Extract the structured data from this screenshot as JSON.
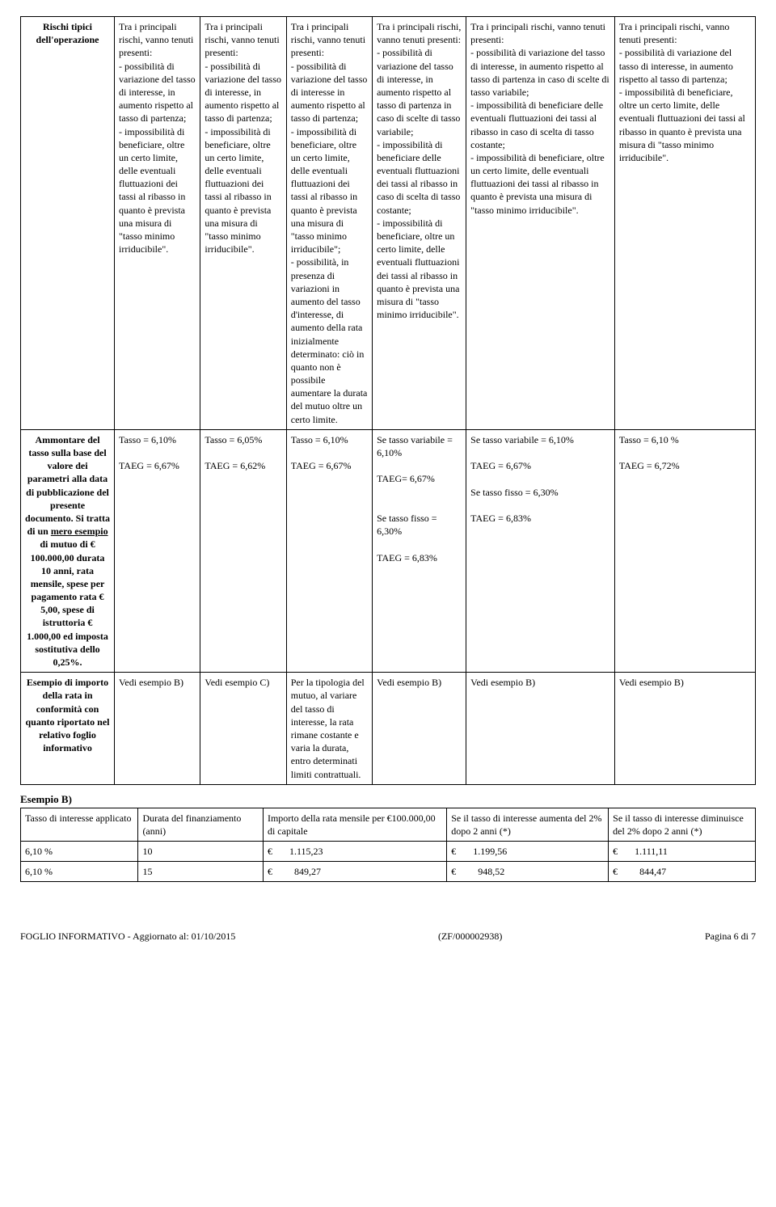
{
  "mainTable": {
    "col_widths": [
      "12%",
      "11%",
      "11%",
      "11%",
      "12%",
      "19%",
      "18%"
    ],
    "rows": [
      {
        "header": "Rischi tipici dell'operazione",
        "cells": [
          "Tra i principali rischi, vanno tenuti presenti:\n- possibilità di variazione del tasso di interesse, in aumento rispetto al tasso di partenza;\n- impossibilità di beneficiare, oltre un certo limite, delle eventuali fluttuazioni dei tassi al ribasso in quanto è prevista una misura di \"tasso minimo irriducibile\".",
          "Tra i principali rischi, vanno tenuti presenti:\n- possibilità di variazione del tasso di interesse, in aumento rispetto al tasso di partenza;\n- impossibilità di beneficiare, oltre un certo limite, delle eventuali fluttuazioni dei tassi al ribasso in quanto è prevista  una misura di \"tasso minimo irriducibile\".",
          "Tra i principali rischi, vanno tenuti presenti:\n- possibilità di variazione del tasso di interesse  in aumento rispetto al tasso di partenza;\n- impossibilità di beneficiare, oltre un certo limite, delle eventuali fluttuazioni dei tassi al ribasso in quanto è prevista una misura di \"tasso minimo irriducibile\";\n- possibilità, in presenza di variazioni in aumento del tasso d'interesse, di aumento della rata inizialmente determinato: ciò in quanto non è possibile aumentare la durata del mutuo oltre un certo limite.",
          "Tra i principali rischi, vanno tenuti presenti:\n- possibilità di variazione del tasso di interesse, in aumento rispetto al tasso di partenza in caso di scelte di tasso variabile;\n- impossibilità di beneficiare delle eventuali fluttuazioni dei tassi al ribasso in caso di scelta di tasso costante;\n- impossibilità di beneficiare, oltre un certo limite, delle eventuali fluttuazioni dei tassi al ribasso in quanto è prevista una misura di \"tasso minimo irriducibile\".",
          "Tra i principali rischi, vanno tenuti presenti:\n- possibilità di variazione del tasso di interesse, in aumento rispetto al tasso di partenza in caso di scelte di tasso variabile;\n- impossibilità di beneficiare delle eventuali fluttuazioni dei tassi al ribasso in caso di scelta di tasso costante;\n- impossibilità di beneficiare, oltre un certo limite, delle eventuali fluttuazioni dei tassi al ribasso in quanto è prevista una misura di \"tasso minimo irriducibile\".",
          "Tra i principali rischi, vanno tenuti presenti:\n- possibilità di variazione del tasso di interesse, in aumento rispetto al tasso di partenza;\n- impossibilità di beneficiare, oltre un certo limite, delle eventuali fluttuazioni dei tassi al ribasso in quanto è prevista  una misura di \"tasso minimo irriducibile\"."
        ]
      },
      {
        "header_html": "Ammontare del tasso sulla base del valore dei parametri alla data di pubblicazione del presente documento. Si tratta di un <span class=\"underline\">mero esempio</span> di mutuo di € 100.000,00 durata 10 anni, rata mensile, spese per pagamento rata € 5,00, spese di istruttoria € 1.000,00 ed imposta sostitutiva dello 0,25%.",
        "cells": [
          "Tasso =  6,10%\n\nTAEG = 6,67%",
          "Tasso = 6,05%\n\nTAEG = 6,62%",
          "Tasso = 6,10%\n\nTAEG = 6,67%",
          "Se tasso variabile = 6,10%\n\nTAEG= 6,67%\n\n\nSe tasso  fisso = 6,30%\n\nTAEG = 6,83%",
          "Se tasso variabile = 6,10%\n\nTAEG = 6,67%\n\nSe tasso  fisso = 6,30%\n\nTAEG = 6,83%",
          "Tasso =  6,10 %\n\nTAEG = 6,72%"
        ]
      },
      {
        "header": "Esempio di importo della rata in conformità con quanto riportato nel relativo foglio informativo",
        "cells": [
          "Vedi esempio B)",
          "Vedi esempio C)",
          "Per la tipologia del mutuo, al variare del tasso di interesse, la rata rimane costante e varia la durata, entro determinati limiti contrattuali.",
          "Vedi esempio B)",
          "Vedi esempio B)",
          "Vedi esempio B)"
        ]
      }
    ]
  },
  "exampleB": {
    "label": "Esempio B)",
    "headers": [
      "Tasso di interesse applicato",
      "Durata del finanziamento (anni)",
      "Importo della rata mensile per €100.000,00 di capitale",
      "Se il tasso di interesse aumenta del 2% dopo 2 anni (*)",
      "Se il tasso di interesse diminuisce del 2% dopo 2 anni (*)"
    ],
    "col_widths": [
      "16%",
      "17%",
      "25%",
      "22%",
      "20%"
    ],
    "rows": [
      [
        "6,10 %",
        "10",
        "€       1.115,23",
        "€       1.199,56",
        "€       1.111,11"
      ],
      [
        "6,10 %",
        "15",
        "€         849,27",
        "€         948,52",
        "€         844,47"
      ]
    ]
  },
  "footer": {
    "left": "FOGLIO INFORMATIVO - Aggiornato al: 01/10/2015",
    "center": "(ZF/000002938)",
    "right": "Pagina 6 di 7"
  }
}
